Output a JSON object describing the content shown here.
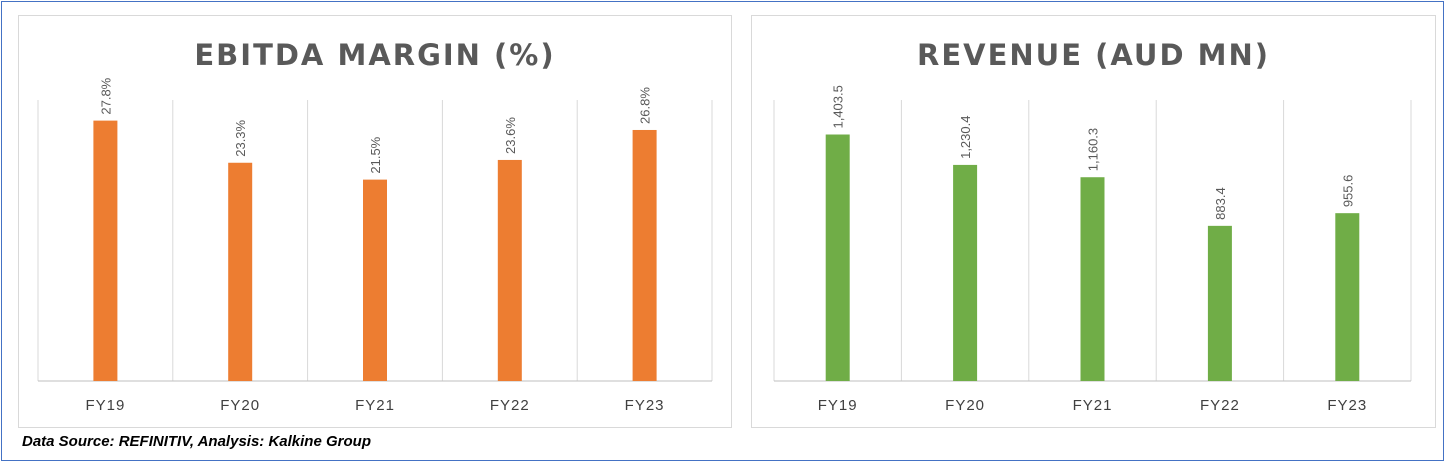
{
  "source_note": "Data Source: REFINITIV, Analysis: Kalkine Group",
  "chart_data": [
    {
      "type": "bar",
      "title": "EBITDA MARGIN (%)",
      "categories": [
        "FY19",
        "FY20",
        "FY21",
        "FY22",
        "FY23"
      ],
      "values": [
        27.8,
        23.3,
        21.5,
        23.6,
        26.8
      ],
      "data_labels": [
        "27.8%",
        "23.3%",
        "21.5%",
        "23.6%",
        "26.8%"
      ],
      "ylim": [
        0,
        30
      ],
      "color": "#ed7d31",
      "grid": "vertical category separators",
      "xlabel": "",
      "ylabel": ""
    },
    {
      "type": "bar",
      "title": "REVENUE (AUD MN)",
      "categories": [
        "FY19",
        "FY20",
        "FY21",
        "FY22",
        "FY23"
      ],
      "values": [
        1403.5,
        1230.4,
        1160.3,
        883.4,
        955.6
      ],
      "data_labels": [
        "1,403.5",
        "1,230.4",
        "1,160.3",
        "883.4",
        "955.6"
      ],
      "ylim": [
        0,
        1600
      ],
      "color": "#70ad47",
      "grid": "vertical category separators",
      "xlabel": "",
      "ylabel": ""
    }
  ]
}
